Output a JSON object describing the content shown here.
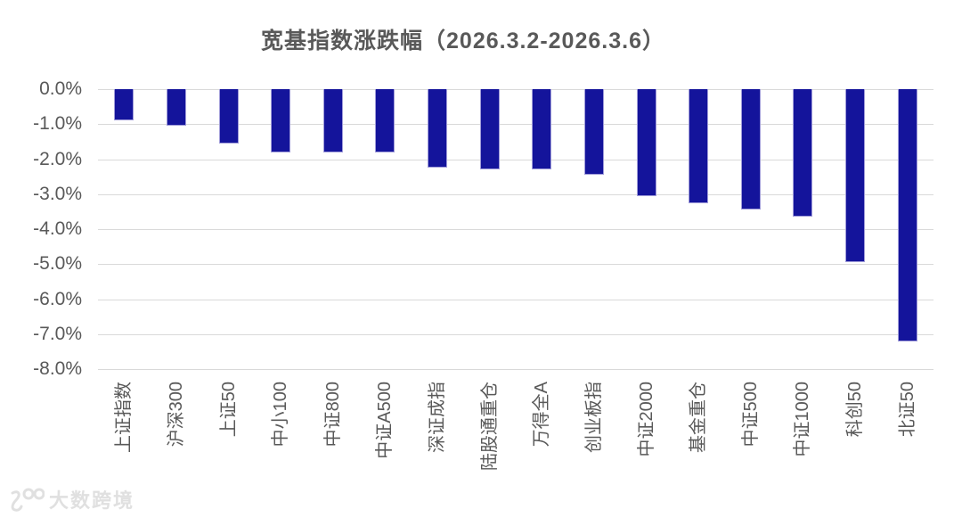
{
  "title": "宽基指数涨跌幅（2026.3.2-2026.3.6）",
  "watermark": {
    "brand": "大数跨境",
    "icon": "swirl-100-logo"
  },
  "colors": {
    "bar": "#14149B",
    "grid": "#D9D9D9",
    "axis_text": "#595959",
    "title_text": "#595959",
    "watermark_text": "#E0E0E0",
    "background": "#FFFFFF"
  },
  "chart_data": {
    "type": "bar",
    "title": "宽基指数涨跌幅（2026.3.2-2026.3.6）",
    "categories": [
      "上证指数",
      "沪深300",
      "上证50",
      "中小100",
      "中证800",
      "中证A500",
      "深证成指",
      "陆股通重仓",
      "万得全A",
      "创业板指",
      "中证2000",
      "基金重仓",
      "中证500",
      "中证1000",
      "科创50",
      "北证50"
    ],
    "values": [
      -0.9,
      -1.05,
      -1.55,
      -1.8,
      -1.8,
      -1.8,
      -2.25,
      -2.3,
      -2.3,
      -2.45,
      -3.05,
      -3.25,
      -3.45,
      -3.65,
      -4.95,
      -7.2
    ],
    "value_unit": "%",
    "xlabel": "",
    "ylabel": "",
    "ylim": [
      -8.0,
      0.0
    ],
    "ytick_labels": [
      "0.0%",
      "-1.0%",
      "-2.0%",
      "-3.0%",
      "-4.0%",
      "-5.0%",
      "-6.0%",
      "-7.0%",
      "-8.0%"
    ],
    "grid": true,
    "legend": false,
    "bar_color": "#14149B",
    "x_label_rotation_deg": 90
  }
}
